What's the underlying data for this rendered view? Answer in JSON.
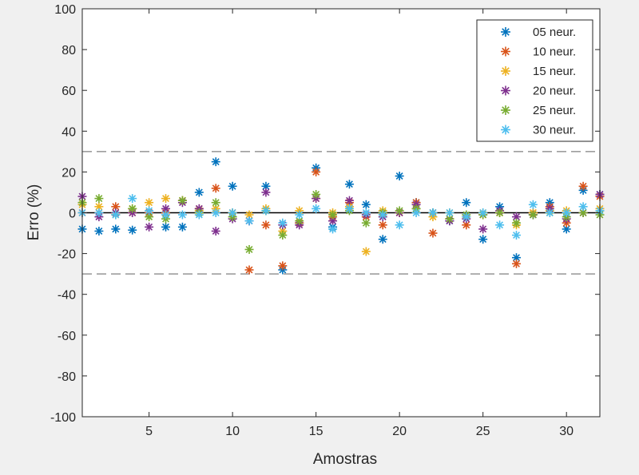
{
  "chart_data": {
    "type": "scatter",
    "xlabel": "Amostras",
    "ylabel": "Erro (%)",
    "xlim": [
      1,
      32
    ],
    "ylim": [
      -100,
      100
    ],
    "x_ticks": [
      5,
      10,
      15,
      20,
      25,
      30
    ],
    "y_ticks": [
      -100,
      -80,
      -60,
      -40,
      -20,
      0,
      20,
      40,
      60,
      80,
      100
    ],
    "x_tick_labels": [
      "5",
      "10",
      "15",
      "20",
      "25",
      "30"
    ],
    "y_tick_labels": [
      "-100",
      "-80",
      "-60",
      "-40",
      "-20",
      "0",
      "20",
      "40",
      "60",
      "80",
      "100"
    ],
    "marker": "asterisk",
    "legend_position": "top-right",
    "grid": false,
    "reference_lines": [
      {
        "y": 0,
        "style": "solid",
        "color": "#000000"
      },
      {
        "y": 30,
        "style": "dashed",
        "color": "#808080"
      },
      {
        "y": -30,
        "style": "dashed",
        "color": "#808080"
      }
    ],
    "x": [
      1,
      2,
      3,
      4,
      5,
      6,
      7,
      8,
      9,
      10,
      11,
      12,
      13,
      14,
      15,
      16,
      17,
      18,
      19,
      20,
      21,
      22,
      23,
      24,
      25,
      26,
      27,
      28,
      29,
      30,
      31,
      32
    ],
    "series": [
      {
        "name": "05 neur.",
        "color": "#0072BD",
        "values": [
          -8,
          -9,
          -8,
          -8.5,
          0,
          -7,
          -7,
          10,
          25,
          13,
          -4,
          13,
          -28,
          -5,
          22,
          -7,
          14,
          4,
          -13,
          18,
          5,
          0,
          -4,
          5,
          -13,
          3,
          -22,
          -1,
          5,
          -8,
          11,
          9
        ]
      },
      {
        "name": "10 neur.",
        "color": "#D95319",
        "values": [
          0,
          0,
          3,
          0,
          0,
          0,
          6,
          2,
          12,
          0,
          -28,
          -6,
          -26,
          -5,
          20,
          -2,
          5,
          -2,
          -6,
          0,
          5,
          -10,
          -3,
          -6,
          -1,
          0,
          -25,
          0,
          3,
          -5,
          13,
          8
        ]
      },
      {
        "name": "15 neur.",
        "color": "#EDB120",
        "values": [
          4,
          3,
          0,
          2,
          5,
          7,
          6,
          1,
          2,
          0,
          -1,
          2,
          -9,
          1,
          7,
          0,
          3,
          -19,
          1,
          0,
          2,
          -2,
          0,
          -2,
          0,
          0,
          -6,
          0,
          1,
          1,
          0,
          2
        ]
      },
      {
        "name": "20 neur.",
        "color": "#7E2F8E",
        "values": [
          8,
          -2,
          0,
          0,
          -7,
          2,
          5,
          2,
          -9,
          -3,
          -4,
          10,
          -6,
          -6,
          7,
          -4,
          6,
          -1,
          -2,
          0,
          4,
          0,
          -4,
          -3,
          -8,
          1,
          -2,
          -1,
          2,
          -3,
          0,
          9
        ]
      },
      {
        "name": "25 neur.",
        "color": "#77AC30",
        "values": [
          5,
          7,
          -1,
          2,
          -2,
          -3,
          6,
          0,
          5,
          -2,
          -18,
          1,
          -11,
          -4,
          9,
          -1,
          1,
          -5,
          0,
          1,
          2,
          0,
          -3,
          -1,
          -1,
          0,
          -5,
          -1,
          0,
          -2,
          0,
          -1
        ]
      },
      {
        "name": "30 neur.",
        "color": "#4DBEEE",
        "values": [
          0,
          0,
          -1,
          7,
          1,
          -1,
          -1,
          -1,
          0,
          0,
          -4,
          1,
          -5,
          -1,
          2,
          -8,
          2,
          0,
          -1,
          -6,
          0,
          0,
          0,
          -2,
          0,
          -6,
          -11,
          4,
          0,
          0,
          3,
          1
        ]
      }
    ]
  }
}
